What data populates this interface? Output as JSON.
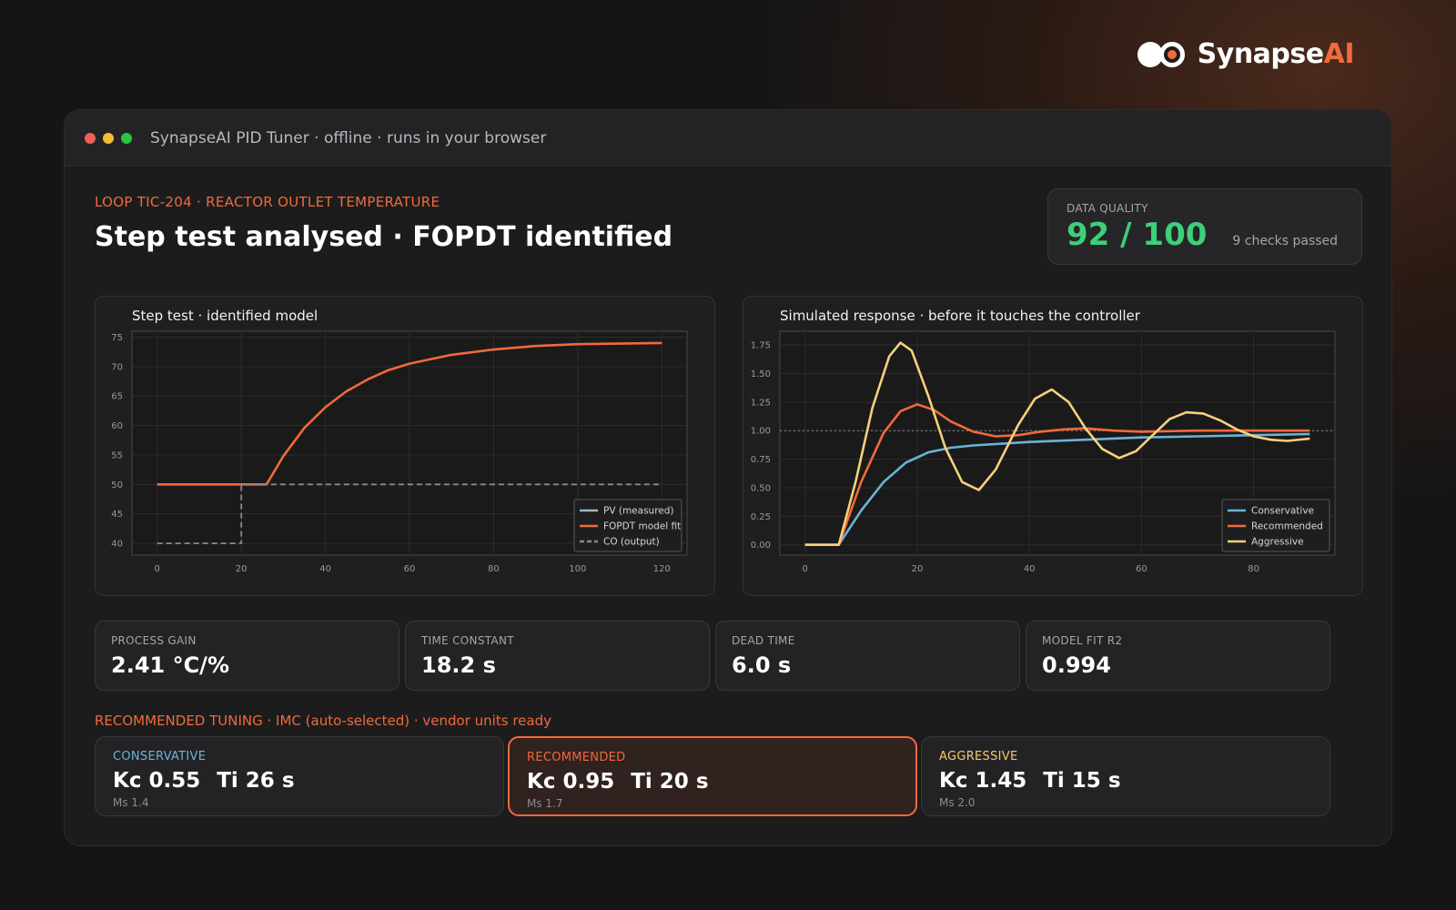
{
  "brand": {
    "name_main": "Synapse",
    "name_accent": "AI",
    "accent_color": "#f06a3b"
  },
  "window": {
    "title": "SynapseAI PID Tuner  ·  offline · runs in your browser"
  },
  "header": {
    "loop_label": "LOOP  TIC-204  ·  REACTOR OUTLET TEMPERATURE",
    "title": "Step test analysed  ·  FOPDT identified"
  },
  "quality": {
    "label": "DATA QUALITY",
    "score": "92 / 100",
    "note": "9 checks passed",
    "score_color": "#3ecf7a"
  },
  "stats": [
    {
      "label": "PROCESS GAIN",
      "value": "2.41 °C/%"
    },
    {
      "label": "TIME CONSTANT",
      "value": "18.2 s"
    },
    {
      "label": "DEAD TIME",
      "value": "6.0 s"
    },
    {
      "label": "MODEL FIT  R2",
      "value": "0.994"
    }
  ],
  "tuning": {
    "header": "RECOMMENDED TUNING  ·  IMC (auto-selected)  ·  vendor units ready",
    "cards": [
      {
        "label": "CONSERVATIVE",
        "kc": "Kc 0.55",
        "ti": "Ti 26 s",
        "ms": "Ms 1.4",
        "color": "#6bb4d8"
      },
      {
        "label": "RECOMMENDED",
        "kc": "Kc 0.95",
        "ti": "Ti 20 s",
        "ms": "Ms 1.7",
        "color": "#f06a3b"
      },
      {
        "label": "AGGRESSIVE",
        "kc": "Kc 1.45",
        "ti": "Ti 15 s",
        "ms": "Ms 2.0",
        "color": "#f5c96b"
      }
    ]
  },
  "chart_data": [
    {
      "type": "line",
      "title": "Step test · identified model",
      "xlim": [
        -6,
        126
      ],
      "ylim": [
        38,
        76
      ],
      "xticks": [
        0,
        20,
        40,
        60,
        80,
        100,
        120
      ],
      "yticks": [
        40,
        45,
        50,
        55,
        60,
        65,
        70,
        75
      ],
      "grid": true,
      "legend_position": "bottom-right",
      "series": [
        {
          "name": "PV (measured)",
          "color": "#9fb7c7",
          "style": "solid",
          "x": [
            0,
            10,
            20,
            26,
            30,
            35,
            40,
            45,
            50,
            55,
            60,
            70,
            80,
            90,
            100,
            110,
            120
          ],
          "y": [
            50,
            50,
            50,
            50,
            54.8,
            59.6,
            63.1,
            65.8,
            67.8,
            69.4,
            70.5,
            72.0,
            72.9,
            73.5,
            73.8,
            73.9,
            74.0
          ]
        },
        {
          "name": "FOPDT model fit",
          "color": "#f06a3b",
          "style": "solid",
          "x": [
            0,
            10,
            20,
            26,
            30,
            35,
            40,
            45,
            50,
            55,
            60,
            70,
            80,
            90,
            100,
            110,
            120
          ],
          "y": [
            50,
            50,
            50,
            50,
            54.8,
            59.6,
            63.1,
            65.8,
            67.8,
            69.4,
            70.5,
            72.0,
            72.9,
            73.5,
            73.8,
            73.9,
            74.0
          ]
        },
        {
          "name": "CO (output)",
          "color": "#8a8a8d",
          "style": "dashed",
          "x": [
            0,
            20,
            20,
            120
          ],
          "y": [
            40,
            40,
            50,
            50
          ]
        }
      ]
    },
    {
      "type": "line",
      "title": "Simulated response · before it touches the controller",
      "xlim": [
        -4.5,
        94.5
      ],
      "ylim": [
        -0.09,
        1.87
      ],
      "xticks": [
        0,
        20,
        40,
        60,
        80
      ],
      "yticks": [
        0.0,
        0.25,
        0.5,
        0.75,
        1.0,
        1.25,
        1.5,
        1.75
      ],
      "ytick_labels": [
        "0.00",
        "0.25",
        "0.50",
        "0.75",
        "1.00",
        "1.25",
        "1.50",
        "1.75"
      ],
      "setpoint": 1.0,
      "grid": true,
      "legend_position": "bottom-right",
      "series": [
        {
          "name": "Conservative",
          "color": "#6bb4d8",
          "x": [
            0,
            6,
            10,
            14,
            18,
            22,
            26,
            30,
            40,
            50,
            60,
            70,
            80,
            90
          ],
          "y": [
            0,
            0,
            0.3,
            0.55,
            0.72,
            0.81,
            0.85,
            0.87,
            0.9,
            0.92,
            0.94,
            0.95,
            0.96,
            0.97
          ]
        },
        {
          "name": "Recommended",
          "color": "#f06a3b",
          "x": [
            0,
            6,
            10,
            14,
            17,
            20,
            23,
            26,
            30,
            34,
            38,
            42,
            46,
            50,
            55,
            60,
            70,
            80,
            90
          ],
          "y": [
            0,
            0,
            0.55,
            0.98,
            1.17,
            1.23,
            1.18,
            1.08,
            0.99,
            0.95,
            0.96,
            0.99,
            1.01,
            1.02,
            1.0,
            0.99,
            1.0,
            1.0,
            1.0
          ]
        },
        {
          "name": "Aggressive",
          "color": "#f5d27a",
          "x": [
            0,
            6,
            9,
            12,
            15,
            17,
            19,
            22,
            25,
            28,
            31,
            34,
            38,
            41,
            44,
            47,
            50,
            53,
            56,
            59,
            62,
            65,
            68,
            71,
            74,
            77,
            80,
            83,
            86,
            90
          ],
          "y": [
            0,
            0,
            0.55,
            1.2,
            1.65,
            1.77,
            1.7,
            1.3,
            0.85,
            0.55,
            0.48,
            0.66,
            1.05,
            1.28,
            1.36,
            1.25,
            1.02,
            0.84,
            0.76,
            0.82,
            0.96,
            1.1,
            1.16,
            1.15,
            1.09,
            1.01,
            0.95,
            0.92,
            0.91,
            0.93
          ]
        }
      ]
    }
  ]
}
